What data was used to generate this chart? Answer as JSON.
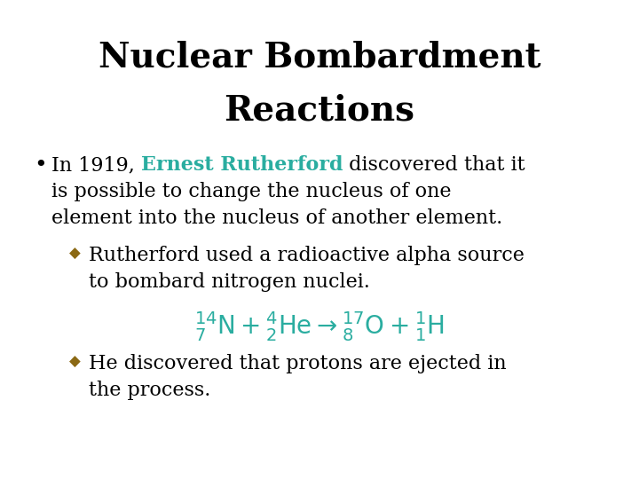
{
  "title_line1": "Nuclear Bombardment",
  "title_line2": "Reactions",
  "title_fontsize": 28,
  "title_color": "#000000",
  "background_color": "#ffffff",
  "bullet_color": "#000000",
  "bullet_fontsize": 16,
  "diamond_color": "#8B6914",
  "rutherford_color": "#2aada0",
  "equation_color": "#2aada0",
  "bullet_text_pre": "In 1919, ",
  "rutherford_text": "Ernest Rutherford",
  "bullet_text_post": " discovered that it",
  "bullet_text_line2": "is possible to change the nucleus of one",
  "bullet_text_line3": "element into the nucleus of another element.",
  "sub1_line1": "Rutherford used a radioactive alpha source",
  "sub1_line2": "to bombard nitrogen nuclei.",
  "sub2_line1": "He discovered that protons are ejected in",
  "sub2_line2": "the process.",
  "eq_fontsize": 20
}
